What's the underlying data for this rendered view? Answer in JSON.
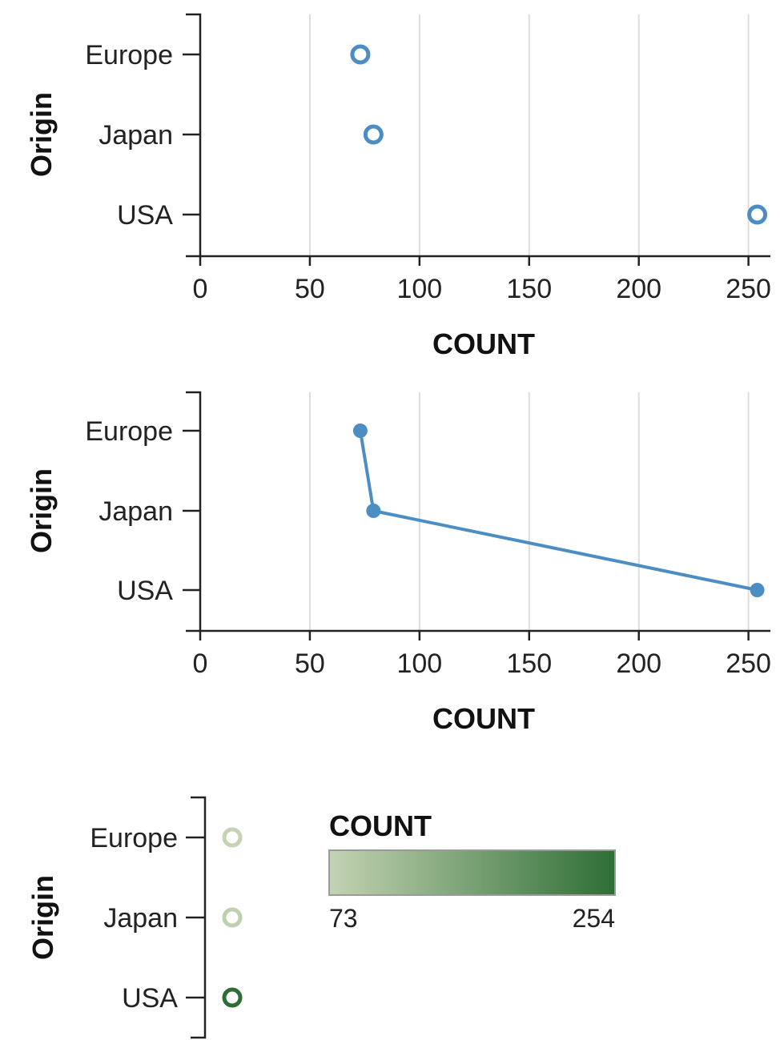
{
  "chart_data": [
    {
      "type": "scatter",
      "mark": "open-circle",
      "xlabel": "COUNT",
      "ylabel": "Origin",
      "categories": [
        "Europe",
        "Japan",
        "USA"
      ],
      "values": [
        73,
        79,
        254
      ],
      "xlim": [
        0,
        260
      ],
      "xticks": [
        0,
        50,
        100,
        150,
        200,
        250
      ],
      "grid": "vertical",
      "color": "#4c8ec3"
    },
    {
      "type": "line",
      "mark": "line-with-points",
      "xlabel": "COUNT",
      "ylabel": "Origin",
      "categories": [
        "Europe",
        "Japan",
        "USA"
      ],
      "values": [
        73,
        79,
        254
      ],
      "xlim": [
        0,
        260
      ],
      "xticks": [
        0,
        50,
        100,
        150,
        200,
        250
      ],
      "grid": "vertical",
      "color": "#4c8ec3"
    },
    {
      "type": "scatter",
      "mark": "open-circle-color-encoded",
      "ylabel": "Origin",
      "categories": [
        "Europe",
        "Japan",
        "USA"
      ],
      "values": [
        73,
        79,
        254
      ],
      "legend": {
        "title": "COUNT",
        "min_label": "73",
        "max_label": "254",
        "min": 73,
        "max": 254,
        "color_low": "#c3d3b3",
        "color_high": "#2e6e35",
        "placement": "right"
      }
    }
  ]
}
